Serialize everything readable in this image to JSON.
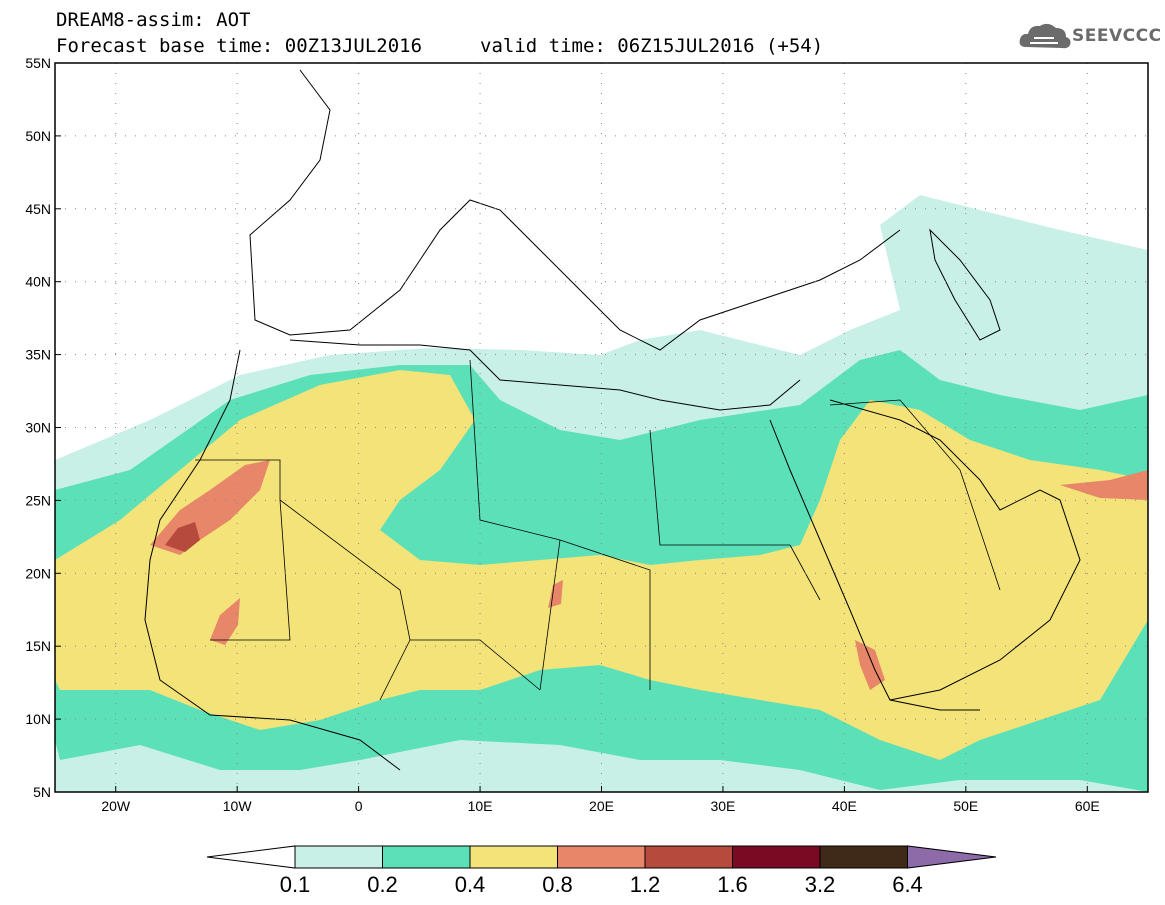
{
  "header": {
    "line1": "DREAM8-assim: AOT",
    "line2": "Forecast base time: 00Z13JUL2016",
    "valid": "valid time: 06Z15JUL2016 (+54)"
  },
  "logo": {
    "text": "SEEVCCC",
    "icon": "cloud-icon"
  },
  "map": {
    "lat_labels": [
      "55N",
      "50N",
      "45N",
      "40N",
      "35N",
      "30N",
      "25N",
      "20N",
      "15N",
      "10N",
      "5N"
    ],
    "lon_labels": [
      "20W",
      "10W",
      "0",
      "10E",
      "20E",
      "30E",
      "40E",
      "50E",
      "60E"
    ],
    "lat_range": [
      5,
      55
    ],
    "lon_range": [
      -25,
      65
    ],
    "grid": "dotted"
  },
  "colorbar": {
    "labels": [
      "0.1",
      "0.2",
      "0.4",
      "0.8",
      "1.2",
      "1.6",
      "3.2",
      "6.4"
    ],
    "colors": [
      "#c8f0e6",
      "#5ce0b8",
      "#f3e379",
      "#e8866a",
      "#b64a3c",
      "#7a0a24",
      "#3f2a1a",
      "#8d6aa8"
    ],
    "below_color": "#ffffff"
  }
}
